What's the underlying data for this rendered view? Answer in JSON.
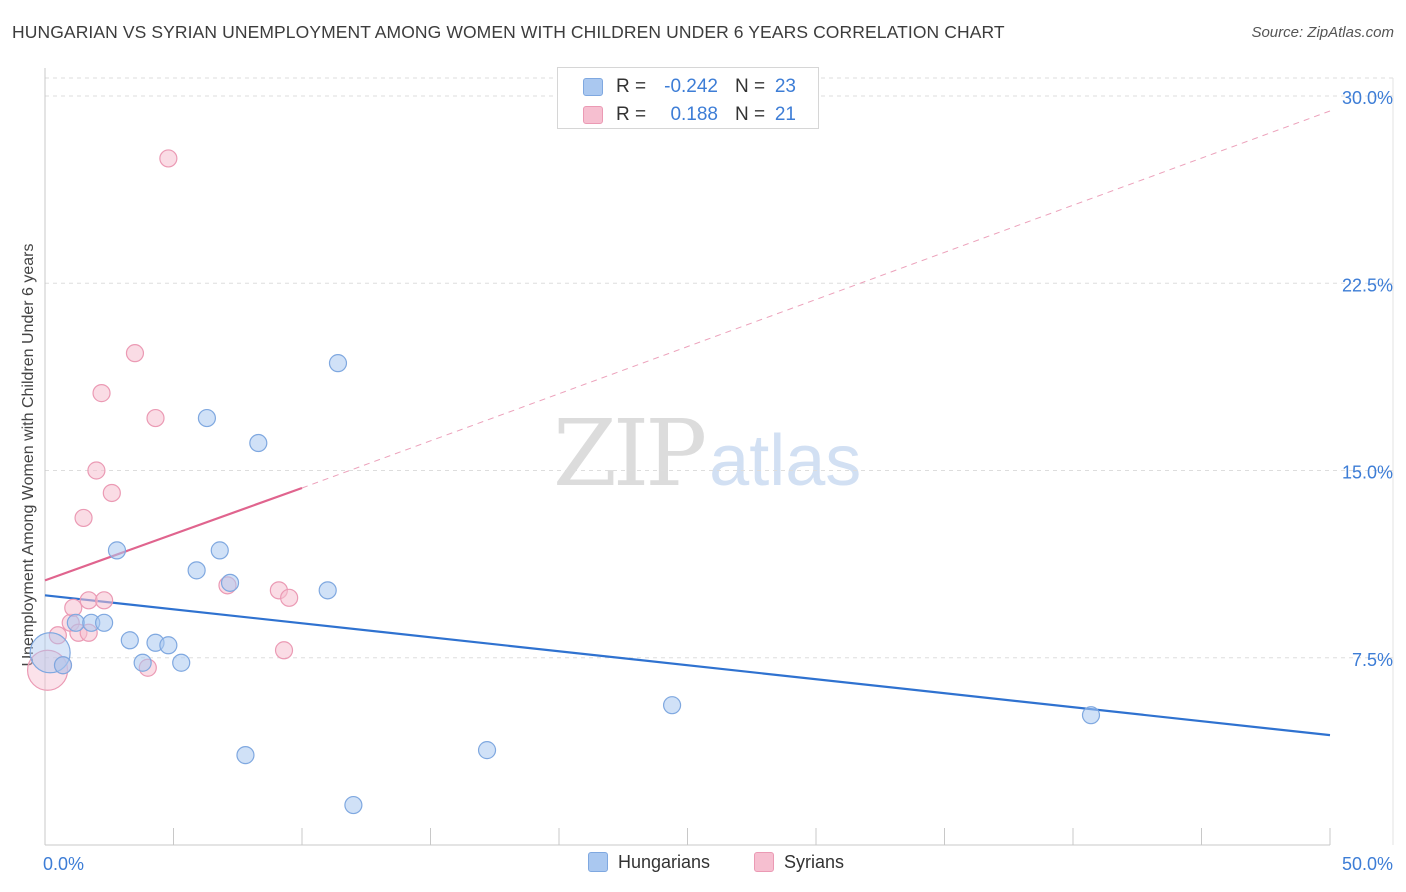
{
  "title": "HUNGARIAN VS SYRIAN UNEMPLOYMENT AMONG WOMEN WITH CHILDREN UNDER 6 YEARS CORRELATION CHART",
  "source": "Source: ZipAtlas.com",
  "watermark": {
    "zip": "ZIP",
    "atlas": "atlas"
  },
  "legend_top": {
    "rows": [
      {
        "r_label": "R =",
        "r_value": "-0.242",
        "n_label": "N =",
        "n_value": "23"
      },
      {
        "r_label": "R =",
        "r_value": "0.188",
        "n_label": "N =",
        "n_value": "21"
      }
    ]
  },
  "legend_bottom": {
    "hungarians": "Hungarians",
    "syrians": "Syrians"
  },
  "colors": {
    "hungarian_fill": "#aac8f0",
    "hungarian_stroke": "#7fa8e0",
    "hungarian_line": "#2f72d0",
    "syrian_fill": "#f6bfd0",
    "syrian_stroke": "#eb9ab4",
    "syrian_line": "#e0648e",
    "tick_label": "#3d7dd6",
    "grid": "#dddddd"
  },
  "chart_data": {
    "type": "scatter",
    "title": "HUNGARIAN VS SYRIAN UNEMPLOYMENT AMONG WOMEN WITH CHILDREN UNDER 6 YEARS CORRELATION CHART",
    "xlabel": "",
    "ylabel": "Unemployment Among Women with Children Under 6 years",
    "xlim": [
      0,
      50
    ],
    "ylim": [
      0,
      30.7
    ],
    "x_tick_labels": [
      "0.0%",
      "50.0%"
    ],
    "y_ticks": [
      7.5,
      15.0,
      22.5,
      30.0
    ],
    "y_tick_labels": [
      "7.5%",
      "15.0%",
      "22.5%",
      "30.0%"
    ],
    "x_minor_ticks": [
      0,
      5,
      10,
      15,
      20,
      25,
      30,
      35,
      40,
      45,
      50
    ],
    "legend_position": "bottom-center",
    "series": [
      {
        "name": "Hungarians",
        "r": -0.242,
        "n": 23,
        "points": [
          {
            "x": 0.2,
            "y": 7.7,
            "big": true
          },
          {
            "x": 0.7,
            "y": 7.2
          },
          {
            "x": 1.2,
            "y": 8.9
          },
          {
            "x": 1.8,
            "y": 8.9
          },
          {
            "x": 2.3,
            "y": 8.9
          },
          {
            "x": 2.8,
            "y": 11.8
          },
          {
            "x": 3.3,
            "y": 8.2
          },
          {
            "x": 3.8,
            "y": 7.3
          },
          {
            "x": 4.3,
            "y": 8.1
          },
          {
            "x": 4.8,
            "y": 8.0
          },
          {
            "x": 5.3,
            "y": 7.3
          },
          {
            "x": 5.9,
            "y": 11.0
          },
          {
            "x": 6.3,
            "y": 17.1
          },
          {
            "x": 6.8,
            "y": 11.8
          },
          {
            "x": 7.2,
            "y": 10.5
          },
          {
            "x": 7.8,
            "y": 3.6
          },
          {
            "x": 8.3,
            "y": 16.1
          },
          {
            "x": 11.0,
            "y": 10.2
          },
          {
            "x": 11.4,
            "y": 19.3
          },
          {
            "x": 12.0,
            "y": 1.6
          },
          {
            "x": 17.2,
            "y": 3.8
          },
          {
            "x": 24.4,
            "y": 5.6
          },
          {
            "x": 40.7,
            "y": 5.2
          }
        ],
        "trend": {
          "x": [
            0,
            50
          ],
          "y": [
            10.0,
            4.4
          ]
        }
      },
      {
        "name": "Syrians",
        "r": 0.188,
        "n": 21,
        "points": [
          {
            "x": 0.1,
            "y": 7.0,
            "big": true
          },
          {
            "x": 0.5,
            "y": 8.4
          },
          {
            "x": 0.7,
            "y": 7.2
          },
          {
            "x": 1.0,
            "y": 8.9
          },
          {
            "x": 1.1,
            "y": 9.5
          },
          {
            "x": 1.3,
            "y": 8.5
          },
          {
            "x": 1.5,
            "y": 13.1
          },
          {
            "x": 1.7,
            "y": 9.8
          },
          {
            "x": 1.7,
            "y": 8.5
          },
          {
            "x": 2.0,
            "y": 15.0
          },
          {
            "x": 2.2,
            "y": 18.1
          },
          {
            "x": 2.3,
            "y": 9.8
          },
          {
            "x": 2.6,
            "y": 14.1
          },
          {
            "x": 3.5,
            "y": 19.7
          },
          {
            "x": 4.0,
            "y": 7.1
          },
          {
            "x": 4.3,
            "y": 17.1
          },
          {
            "x": 4.8,
            "y": 27.5
          },
          {
            "x": 7.1,
            "y": 10.4
          },
          {
            "x": 9.1,
            "y": 10.2
          },
          {
            "x": 9.3,
            "y": 7.8
          },
          {
            "x": 9.5,
            "y": 9.9
          }
        ],
        "trend_solid": {
          "x": [
            0,
            10
          ],
          "y": [
            10.6,
            14.3
          ]
        },
        "trend_dashed": {
          "x": [
            10,
            50
          ],
          "y": [
            14.3,
            29.4
          ]
        }
      }
    ]
  }
}
